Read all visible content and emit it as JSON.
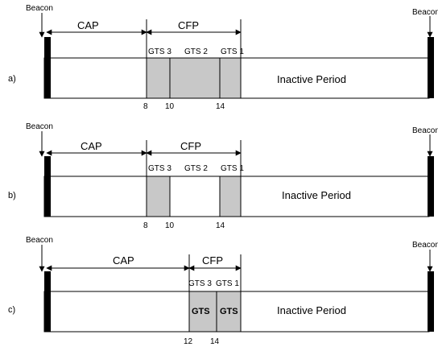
{
  "rows": [
    {
      "row_label": "a)",
      "beacon_left": "Beacon",
      "beacon_right": "Beacon",
      "cap": "CAP",
      "cfp": "CFP",
      "gts_labels": [
        "GTS 3",
        "GTS 2",
        "GTS 1"
      ],
      "gts_box_labels": [],
      "inactive": "Inactive Period",
      "ticks": [
        "8",
        "10",
        "14"
      ]
    },
    {
      "row_label": "b)",
      "beacon_left": "Beacon",
      "beacon_right": "Beacon",
      "cap": "CAP",
      "cfp": "CFP",
      "gts_labels": [
        "GTS 3",
        "GTS 2",
        "GTS 1"
      ],
      "gts_box_labels": [],
      "inactive": "Inactive Period",
      "ticks": [
        "8",
        "10",
        "14"
      ]
    },
    {
      "row_label": "c)",
      "beacon_left": "Beacon",
      "beacon_right": "Beacon",
      "cap": "CAP",
      "cfp": "CFP",
      "gts_labels": [
        "GTS 3",
        "GTS 1"
      ],
      "gts_box_labels": [
        "GTS",
        "GTS"
      ],
      "inactive": "Inactive Period",
      "ticks": [
        "12",
        "14"
      ]
    }
  ]
}
